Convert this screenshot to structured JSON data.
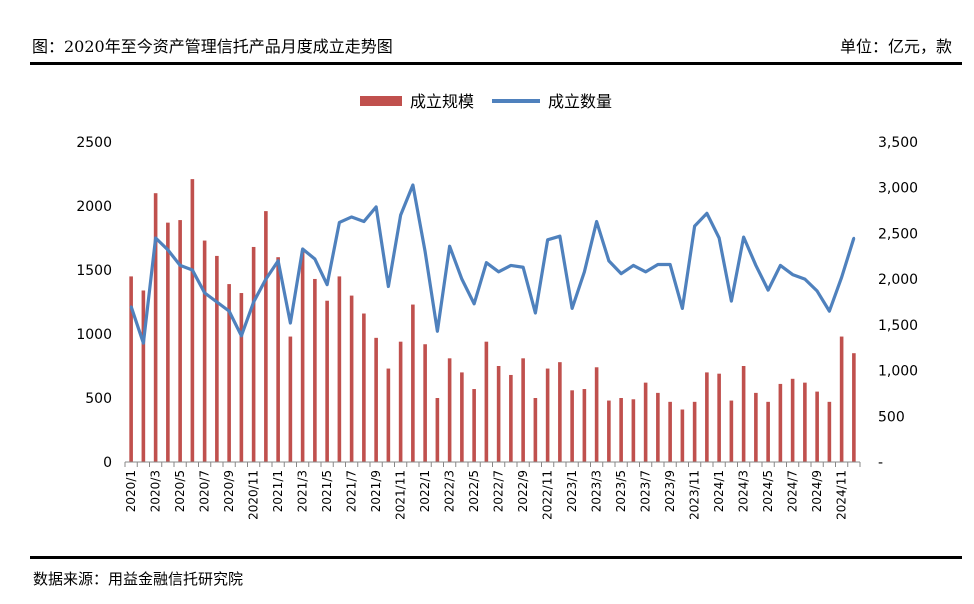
{
  "header": {
    "title": "图：2020年至今资产管理信托产品月度成立走势图",
    "unit": "单位：亿元，款"
  },
  "footer": {
    "source": "数据来源：用益金融信托研究院"
  },
  "colors": {
    "bar": "#c0504d",
    "line": "#4f81bd"
  },
  "chart_data": {
    "type": "bar+line",
    "categories": [
      "2020/1",
      "2020/2",
      "2020/3",
      "2020/4",
      "2020/5",
      "2020/6",
      "2020/7",
      "2020/8",
      "2020/9",
      "2020/10",
      "2020/11",
      "2020/12",
      "2021/1",
      "2021/2",
      "2021/3",
      "2021/4",
      "2021/5",
      "2021/6",
      "2021/7",
      "2021/8",
      "2021/9",
      "2021/10",
      "2021/11",
      "2021/12",
      "2022/1",
      "2022/2",
      "2022/3",
      "2022/4",
      "2022/5",
      "2022/6",
      "2022/7",
      "2022/8",
      "2022/9",
      "2022/10",
      "2022/11",
      "2022/12",
      "2023/1",
      "2023/2",
      "2023/3",
      "2023/4",
      "2023/5",
      "2023/6",
      "2023/7",
      "2023/8",
      "2023/9",
      "2023/10",
      "2023/11",
      "2023/12",
      "2024/1",
      "2024/2",
      "2024/3",
      "2024/4",
      "2024/5",
      "2024/6",
      "2024/7",
      "2024/8",
      "2024/9",
      "2024/10",
      "2024/11",
      "2024/12"
    ],
    "x_tick_labels": [
      "2020/1",
      "2020/3",
      "2020/5",
      "2020/7",
      "2020/9",
      "2020/11",
      "2021/1",
      "2021/3",
      "2021/5",
      "2021/7",
      "2021/9",
      "2021/11",
      "2022/1",
      "2022/3",
      "2022/5",
      "2022/7",
      "2022/9",
      "2022/11",
      "2023/1",
      "2023/3",
      "2023/5",
      "2023/7",
      "2023/9",
      "2023/11",
      "2024/1",
      "2024/3",
      "2024/5",
      "2024/7",
      "2024/9",
      "2024/11"
    ],
    "series": [
      {
        "name": "成立规模",
        "kind": "bar",
        "axis": "left",
        "values": [
          1450,
          1340,
          2100,
          1870,
          1890,
          2210,
          1730,
          1610,
          1390,
          1320,
          1680,
          1960,
          1600,
          980,
          1650,
          1430,
          1260,
          1450,
          1300,
          1160,
          970,
          730,
          940,
          1230,
          920,
          500,
          810,
          700,
          570,
          940,
          750,
          680,
          810,
          500,
          730,
          780,
          560,
          570,
          740,
          480,
          500,
          490,
          620,
          540,
          470,
          410,
          470,
          700,
          690,
          480,
          750,
          540,
          470,
          610,
          650,
          620,
          550,
          470,
          980,
          850
        ]
      },
      {
        "name": "成立数量",
        "kind": "line",
        "axis": "right",
        "values": [
          1700,
          1300,
          2450,
          2320,
          2150,
          2100,
          1850,
          1750,
          1650,
          1380,
          1750,
          2000,
          2200,
          1520,
          2330,
          2220,
          1940,
          2620,
          2680,
          2630,
          2790,
          1920,
          2700,
          3030,
          2300,
          1430,
          2360,
          2000,
          1730,
          2180,
          2080,
          2150,
          2130,
          1630,
          2430,
          2470,
          1680,
          2080,
          2630,
          2200,
          2060,
          2150,
          2080,
          2160,
          2160,
          1680,
          2580,
          2720,
          2450,
          1760,
          2460,
          2150,
          1880,
          2150,
          2050,
          2000,
          1870,
          1650,
          2020,
          2450
        ]
      }
    ],
    "y_left": {
      "min": 0,
      "max": 2500,
      "ticks": [
        "0",
        "500",
        "1000",
        "1500",
        "2000",
        "2500"
      ]
    },
    "y_right": {
      "min": 0,
      "max": 3500,
      "ticks": [
        "-",
        "500",
        "1,000",
        "1,500",
        "2,000",
        "2,500",
        "3,000",
        "3,500"
      ]
    },
    "legend": "top-center",
    "grid": false
  }
}
